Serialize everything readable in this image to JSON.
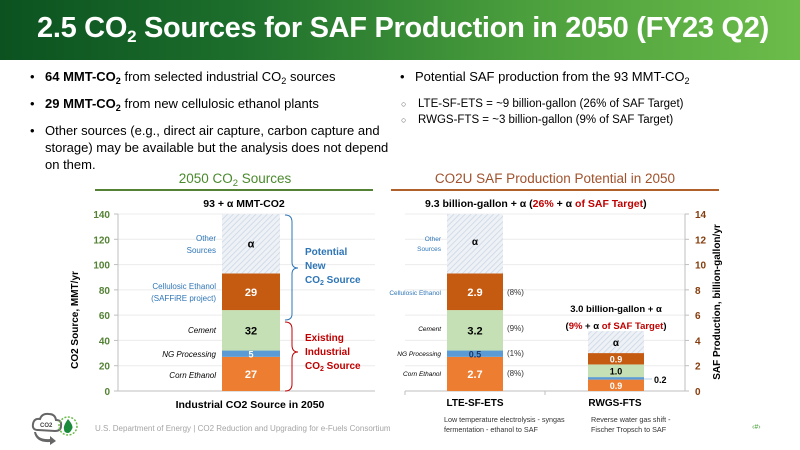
{
  "header": {
    "title_pre": "2.5 CO",
    "title_sub": "2",
    "title_post": " Sources for SAF Production in 2050 (FY23 Q2)"
  },
  "bullets_left": [
    {
      "bold": "64 MMT-CO",
      "bold_sub": "2",
      "text": " from selected industrial CO",
      "text_sub": "2",
      "text_post": " sources"
    },
    {
      "bold": "29 MMT-CO",
      "bold_sub": "2",
      "text": " from new cellulosic ethanol plants",
      "text_sub": "",
      "text_post": ""
    },
    {
      "bold": "",
      "bold_sub": "",
      "text": "Other sources (e.g., direct air capture, carbon capture and storage) may be available but the analysis does not depend on them.",
      "text_sub": "",
      "text_post": ""
    }
  ],
  "bullets_right": {
    "main_pre": "Potential SAF production from the 93 MMT-CO",
    "main_sub": "2",
    "subs": [
      "LTE-SF-ETS = ~9 billion-gallon (26% of SAF Target)",
      "RWGS-FTS = ~3 billion-gallon (9% of SAF Target)"
    ]
  },
  "sections": {
    "left_title_pre": "2050 CO",
    "left_title_sub": "2",
    "left_title_post": " Sources",
    "right_title": "CO2U SAF Production Potential in 2050"
  },
  "colors": {
    "corn_ethanol": "#ed7d31",
    "ng_processing": "#5b9bd5",
    "cement": "#c5e0b4",
    "cellulosic_ethanol": "#c55a11",
    "other_sources": "#dee6ef",
    "axis_left": "#548235",
    "axis_right": "#843c0c",
    "accent_blue": "#2e75b6",
    "accent_red": "#c00000"
  },
  "chart_data": [
    {
      "type": "bar",
      "stacked": true,
      "title": "93 + α MMT-CO2",
      "xlabel": "Industrial CO2 Source in 2050",
      "ylabel": "CO2 Source, MMT/yr",
      "ylim": [
        0,
        140
      ],
      "yticks": [
        0,
        20,
        40,
        60,
        80,
        100,
        120,
        140
      ],
      "categories": [
        "Industrial CO2 Source in 2050"
      ],
      "series": [
        {
          "name": "Corn Ethanol",
          "values": [
            27
          ],
          "label": "27"
        },
        {
          "name": "NG Processing",
          "values": [
            5
          ],
          "label": "5"
        },
        {
          "name": "Cement",
          "values": [
            32
          ],
          "label": "32"
        },
        {
          "name": "Cellulosic Ethanol (SAFFiRE project)",
          "values": [
            29
          ],
          "label": "29"
        },
        {
          "name": "Other Sources",
          "values": [
            "α"
          ],
          "label": "α"
        }
      ],
      "annotations": {
        "new_source": "Potential New CO2 Source",
        "existing_source": "Existing Industrial CO2 Source",
        "cellulosic_line1": "Cellulosic Ethanol",
        "cellulosic_line2": "(SAFFiRE project)",
        "other_line1": "Other",
        "other_line2": "Sources"
      }
    },
    {
      "type": "bar",
      "stacked": true,
      "title": "9.3 billion-gallon + α (26% + α of SAF Target)",
      "ylabel": "SAF Production, billion-gallon/yr",
      "ylim": [
        0,
        14
      ],
      "yticks": [
        0,
        2,
        4,
        6,
        8,
        10,
        12,
        14
      ],
      "categories": [
        "LTE-SF-ETS",
        "RWGS-FTS"
      ],
      "category_descriptions": [
        "Low temperature electrolysis - syngas fermentation - ethanol to SAF",
        "Reverse water gas shift - Fischer Tropsch to SAF"
      ],
      "series": [
        {
          "name": "Corn Ethanol",
          "values": [
            2.7,
            0.9
          ],
          "labels": [
            "2.7",
            "0.9"
          ],
          "pct": "(8%)"
        },
        {
          "name": "NG Processing",
          "values": [
            0.5,
            0.2
          ],
          "labels": [
            "0.5",
            "0.2"
          ],
          "pct": "(1%)"
        },
        {
          "name": "Cement",
          "values": [
            3.2,
            1.0
          ],
          "labels": [
            "3.2",
            "1.0"
          ],
          "pct": "(9%)"
        },
        {
          "name": "Cellulosic Ethanol",
          "values": [
            2.9,
            0.9
          ],
          "labels": [
            "2.9",
            "0.9"
          ],
          "pct": "(8%)"
        },
        {
          "name": "Other Sources",
          "values": [
            "α",
            "α"
          ],
          "labels": [
            "α",
            "α"
          ]
        }
      ],
      "rwgs_annotation_line1": "3.0 billion-gallon + α",
      "rwgs_annotation_line2": "(9% + α of SAF Target)"
    }
  ],
  "footer": {
    "text": "U.S. Department of Energy    |    CO2 Reduction and Upgrading for e-Fuels Consortium",
    "page": "‹#›",
    "logo_text": "CO2"
  }
}
